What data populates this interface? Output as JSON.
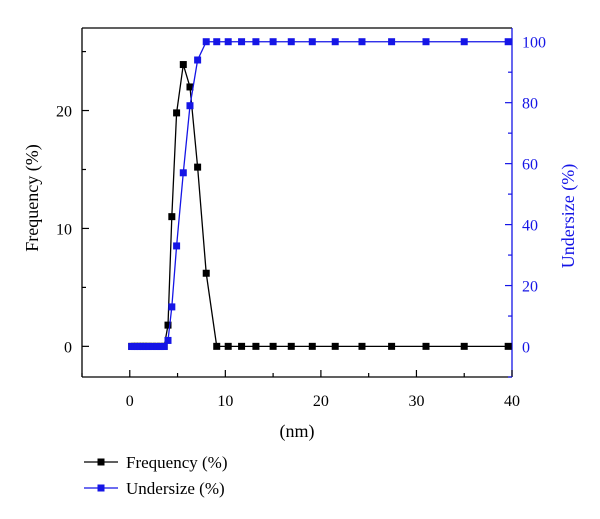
{
  "chart_data": {
    "type": "line",
    "xlabel": "(nm)",
    "ylabel_left": "Frequency (%)",
    "ylabel_right": "Undersize (%)",
    "xlim": [
      -5,
      40
    ],
    "ylim_left": [
      -2.6,
      27
    ],
    "ylim_right": [
      -10,
      104.5
    ],
    "xticks": [
      0,
      10,
      20,
      30,
      40
    ],
    "yticks_left": [
      0,
      10,
      20
    ],
    "yticks_right": [
      0,
      20,
      40,
      60,
      80,
      100
    ],
    "legend_position": "bottom-left",
    "series": [
      {
        "name": "Frequency (%)",
        "color": "#000000",
        "axis": "left",
        "x": [
          0.2,
          0.5,
          0.8,
          1.1,
          1.4,
          1.7,
          2.0,
          2.4,
          2.8,
          3.2,
          3.6,
          4.0,
          4.4,
          4.9,
          5.6,
          6.3,
          7.1,
          8.0,
          9.1,
          10.3,
          11.7,
          13.2,
          15.0,
          16.9,
          19.1,
          21.5,
          24.3,
          27.4,
          31.0,
          35.0,
          39.6
        ],
        "y": [
          0,
          0,
          0,
          0,
          0,
          0,
          0,
          0,
          0,
          0,
          0,
          1.8,
          11.0,
          19.8,
          23.9,
          22.0,
          15.2,
          6.2,
          0,
          0,
          0,
          0,
          0,
          0,
          0,
          0,
          0,
          0,
          0,
          0,
          0
        ]
      },
      {
        "name": "Undersize (%)",
        "color": "#1515e6",
        "axis": "right",
        "x": [
          0.2,
          0.5,
          0.8,
          1.1,
          1.4,
          1.7,
          2.0,
          2.4,
          2.8,
          3.2,
          3.6,
          4.0,
          4.4,
          4.9,
          5.6,
          6.3,
          7.1,
          8.0,
          9.1,
          10.3,
          11.7,
          13.2,
          15.0,
          16.9,
          19.1,
          21.5,
          24.3,
          27.4,
          31.0,
          35.0,
          39.6
        ],
        "y": [
          0,
          0,
          0,
          0,
          0,
          0,
          0,
          0,
          0,
          0,
          0,
          2,
          13,
          33,
          57,
          79,
          94,
          100,
          100,
          100,
          100,
          100,
          100,
          100,
          100,
          100,
          100,
          100,
          100,
          100,
          100
        ]
      }
    ]
  }
}
